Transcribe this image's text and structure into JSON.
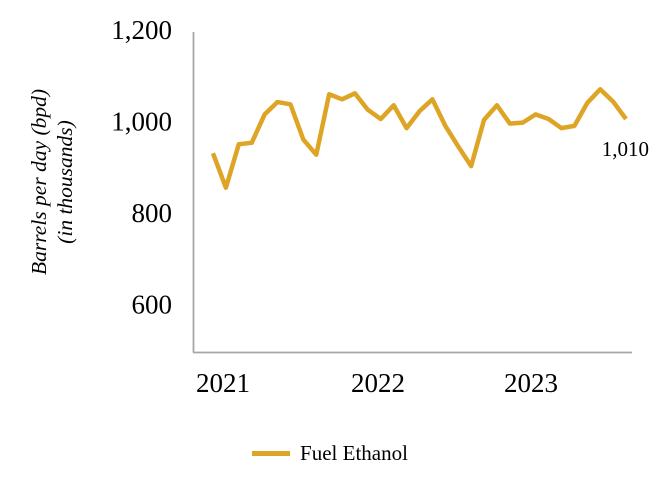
{
  "chart_data": {
    "type": "line",
    "title": "",
    "xlabel": "",
    "ylabel": "Barrels per day (bpd) (in thousands)",
    "ylabel_lines": [
      "Barrels per day (bpd)",
      "(in thousands)"
    ],
    "ylim": [
      500,
      1200
    ],
    "yticks": [
      1200,
      1000,
      800,
      600
    ],
    "xticks": [
      "2021",
      "2022",
      "2023"
    ],
    "grid": false,
    "legend_position": "bottom",
    "last_point_label": "1,010",
    "series": [
      {
        "name": "Fuel Ethanol",
        "color": "#DDA426",
        "x": [
          "2021-01",
          "2021-02",
          "2021-03",
          "2021-04",
          "2021-05",
          "2021-06",
          "2021-07",
          "2021-08",
          "2021-09",
          "2021-10",
          "2021-11",
          "2021-12",
          "2022-01",
          "2022-02",
          "2022-03",
          "2022-04",
          "2022-05",
          "2022-06",
          "2022-07",
          "2022-08",
          "2022-09",
          "2022-10",
          "2022-11",
          "2022-12",
          "2023-01",
          "2023-02",
          "2023-03",
          "2023-04",
          "2023-05",
          "2023-06",
          "2023-07",
          "2023-08",
          "2023-09"
        ],
        "values": [
          935,
          860,
          955,
          958,
          1020,
          1047,
          1042,
          965,
          932,
          1064,
          1053,
          1066,
          1030,
          1010,
          1040,
          990,
          1027,
          1053,
          995,
          950,
          907,
          1008,
          1040,
          1000,
          1002,
          1020,
          1010,
          990,
          995,
          1045,
          1075,
          1048,
          1010
        ]
      }
    ]
  },
  "legend": {
    "label": "Fuel Ethanol"
  },
  "colors": {
    "line": "#DDA426",
    "axis": "#A6A6A6",
    "text": "#000000",
    "background": "#FFFFFF"
  }
}
